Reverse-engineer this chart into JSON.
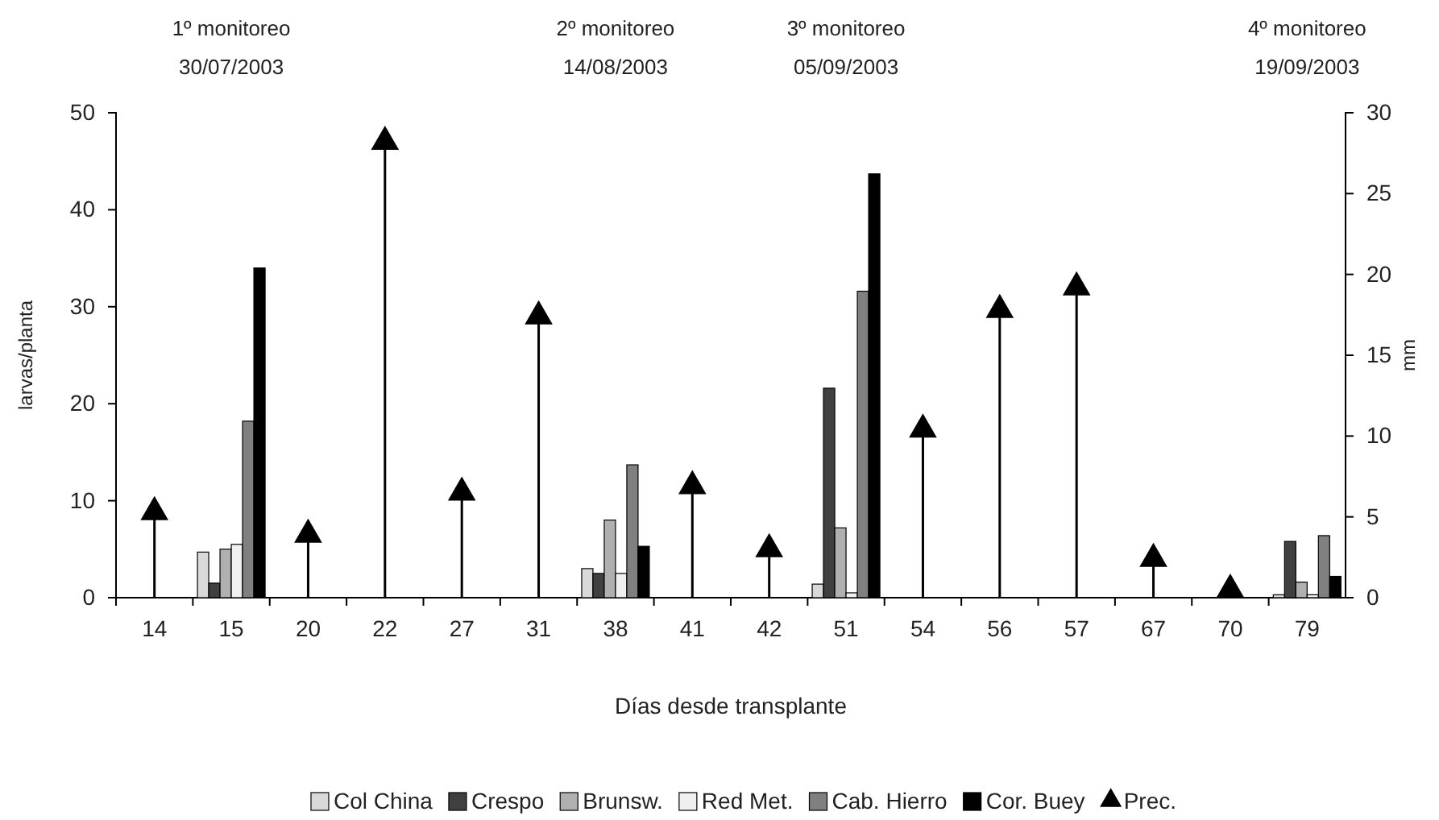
{
  "chart_data": {
    "type": "bar",
    "categories": [
      "14",
      "15",
      "20",
      "22",
      "27",
      "31",
      "38",
      "41",
      "42",
      "51",
      "54",
      "56",
      "57",
      "67",
      "70",
      "79"
    ],
    "series": [
      {
        "name": "Col China",
        "color": "#d9d9d9",
        "values": [
          null,
          4.7,
          null,
          null,
          null,
          null,
          3.0,
          null,
          null,
          1.4,
          null,
          null,
          null,
          null,
          null,
          0.3
        ]
      },
      {
        "name": "Crespo",
        "color": "#404040",
        "values": [
          null,
          1.5,
          null,
          null,
          null,
          null,
          2.5,
          null,
          null,
          21.6,
          null,
          null,
          null,
          null,
          null,
          5.8
        ]
      },
      {
        "name": "Brunsw.",
        "color": "#b0b0b0",
        "values": [
          null,
          5.0,
          null,
          null,
          null,
          null,
          8.0,
          null,
          null,
          7.2,
          null,
          null,
          null,
          null,
          null,
          1.6
        ]
      },
      {
        "name": "Red Met.",
        "color": "#f0f0f0",
        "values": [
          null,
          5.5,
          null,
          null,
          null,
          null,
          2.5,
          null,
          null,
          0.5,
          null,
          null,
          null,
          null,
          null,
          0.3
        ]
      },
      {
        "name": "Cab. Hierro",
        "color": "#808080",
        "values": [
          null,
          18.2,
          null,
          null,
          null,
          null,
          13.7,
          null,
          null,
          31.6,
          null,
          null,
          null,
          null,
          null,
          6.4
        ]
      },
      {
        "name": "Cor. Buey",
        "color": "#000000",
        "values": [
          null,
          34.0,
          null,
          null,
          null,
          null,
          5.3,
          null,
          null,
          43.7,
          null,
          null,
          null,
          null,
          null,
          2.2
        ]
      },
      {
        "name": "Prec.",
        "color": "#000000",
        "type": "lollipop",
        "axis": "y2",
        "marker": "triangle",
        "values": [
          5.3,
          null,
          3.9,
          28.2,
          6.5,
          17.4,
          null,
          6.9,
          3.0,
          null,
          10.4,
          17.8,
          19.2,
          2.4,
          0.5,
          null
        ]
      }
    ],
    "xlabel": "Días desde transplante",
    "ylabel": "larvas/planta",
    "y2label": "mm",
    "ylim": [
      0,
      50
    ],
    "yticks": [
      0,
      10,
      20,
      30,
      40,
      50
    ],
    "y2lim": [
      0,
      30
    ],
    "y2ticks": [
      0,
      5,
      10,
      15,
      20,
      25,
      30
    ],
    "legend": "bottom",
    "annotations": [
      "1º monitoreo\n30/07/2003",
      "2º monitoreo\n14/08/2003",
      "3º monitoreo\n05/09/2003",
      "4º monitoreo\n19/09/2003"
    ]
  }
}
